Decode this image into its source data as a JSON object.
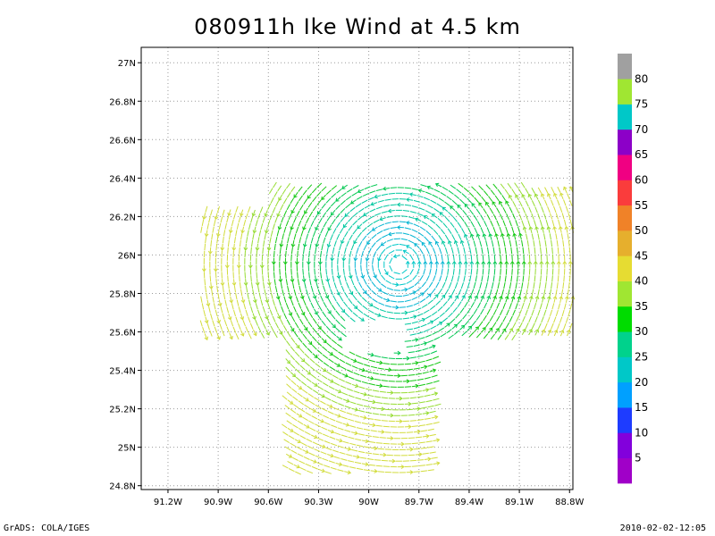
{
  "chart_data": {
    "type": "vector_field",
    "title": "080911h Ike Wind at 4.5 km",
    "xlabel": "",
    "ylabel": "",
    "x_ticks": [
      "91.2W",
      "90.9W",
      "90.6W",
      "90.3W",
      "90W",
      "89.7W",
      "89.4W",
      "89.1W",
      "88.8W"
    ],
    "x_tick_values": [
      -91.2,
      -90.9,
      -90.6,
      -90.3,
      -90.0,
      -89.7,
      -89.4,
      -89.1,
      -88.8
    ],
    "y_ticks": [
      "27N",
      "26.8N",
      "26.6N",
      "26.4N",
      "26.2N",
      "26N",
      "25.8N",
      "25.6N",
      "25.4N",
      "25.2N",
      "25N",
      "24.8N"
    ],
    "y_tick_values": [
      27.0,
      26.8,
      26.6,
      26.4,
      26.2,
      26.0,
      25.8,
      25.6,
      25.4,
      25.2,
      25.0,
      24.8
    ],
    "xlim": [
      -91.36,
      -88.78
    ],
    "ylim": [
      24.78,
      27.08
    ],
    "grid": true,
    "center": {
      "lon": -89.82,
      "lat": 25.95
    },
    "circulation": "counter-clockwise",
    "colorbar": {
      "labels": [
        "5",
        "10",
        "15",
        "20",
        "25",
        "30",
        "35",
        "40",
        "45",
        "50",
        "55",
        "60",
        "65",
        "70",
        "75",
        "80"
      ],
      "colors": [
        "#a000c8",
        "#8200dc",
        "#1e3cff",
        "#00a0ff",
        "#00c8c8",
        "#00d28c",
        "#00dc00",
        "#a0e632",
        "#e6dc32",
        "#e6af2d",
        "#f08228",
        "#fa3c3c",
        "#f00082",
        "#8c00c8",
        "#00c8c8",
        "#a0e632",
        "#a0a0a0"
      ]
    }
  },
  "footer": {
    "left": "GrADS: COLA/IGES",
    "right": "2010-02-02-12:05"
  }
}
